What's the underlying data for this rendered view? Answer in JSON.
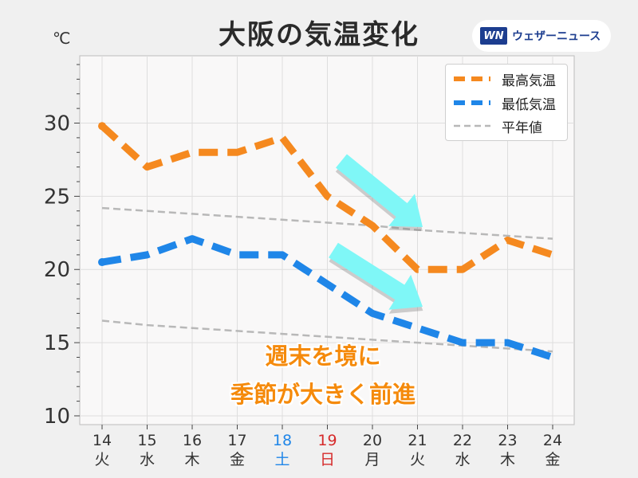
{
  "header": {
    "title": "大阪の気温変化",
    "unit": "℃",
    "logo_mark": "WN",
    "logo_text": "ウェザーニュース"
  },
  "annotation": {
    "line1": "週末を境に",
    "line2": "季節が大きく前進"
  },
  "colors": {
    "high": "#f5891f",
    "low": "#1f86e8",
    "normal": "#b8b8b8",
    "arrow": "#7ff7f7",
    "saturday": "#1f86e8",
    "sunday": "#d62a2a",
    "plot_bg": "#f9f8f8"
  },
  "chart_data": {
    "type": "line",
    "x": [
      "14",
      "15",
      "16",
      "17",
      "18",
      "19",
      "20",
      "21",
      "22",
      "23",
      "24"
    ],
    "weekdays": [
      "火",
      "水",
      "木",
      "金",
      "土",
      "日",
      "月",
      "火",
      "水",
      "木",
      "金"
    ],
    "series": [
      {
        "name": "最高気温",
        "key": "high",
        "style": "dashed-thick",
        "values": [
          29.8,
          27,
          28,
          28,
          29,
          25,
          23,
          20,
          20,
          22,
          21
        ]
      },
      {
        "name": "最低気温",
        "key": "low",
        "style": "dashed-thick",
        "values": [
          20.5,
          21,
          22.1,
          21,
          21,
          19,
          17,
          16,
          15,
          15,
          14
        ]
      },
      {
        "name": "平年値",
        "key": "normal",
        "style": "dashed-thin",
        "values": [
          24.2,
          24.0,
          23.8,
          23.6,
          23.4,
          23.2,
          23.0,
          22.7,
          22.5,
          22.3,
          22.1
        ]
      },
      {
        "name": "",
        "key": "normal_low",
        "style": "dashed-thin",
        "values": [
          16.5,
          16.2,
          16.0,
          15.8,
          15.6,
          15.4,
          15.2,
          15.0,
          14.8,
          14.6,
          14.4
        ]
      }
    ],
    "yticks": [
      10,
      15,
      20,
      25,
      30
    ],
    "ylim": [
      9.4,
      34.6
    ],
    "ylabel": "℃",
    "grid": true,
    "legend": "top-right"
  }
}
